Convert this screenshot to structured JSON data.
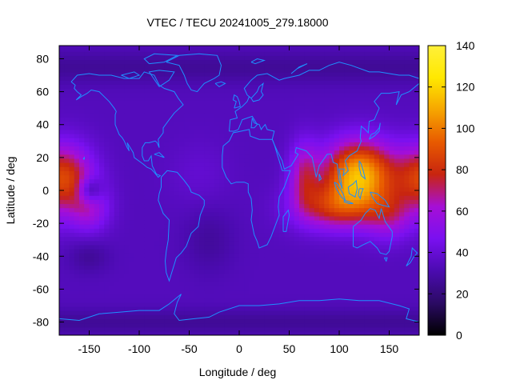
{
  "title": "VTEC / TECU 20241005_279.18000",
  "x_axis": {
    "label": "Longitude / deg",
    "range": [
      -180,
      180
    ],
    "ticks": [
      -150,
      -100,
      -50,
      0,
      50,
      100,
      150
    ],
    "tick_labels": [
      "-150",
      "-100",
      "-50",
      "0",
      "50",
      "100",
      "150"
    ]
  },
  "y_axis": {
    "label": "Latitude / deg",
    "range": [
      -88,
      88
    ],
    "ticks": [
      -80,
      -60,
      -40,
      -20,
      0,
      20,
      40,
      60,
      80
    ],
    "tick_labels": [
      "-80",
      "-60",
      "-40",
      "-20",
      "0",
      "20",
      "40",
      "60",
      "80"
    ]
  },
  "colorbar": {
    "range": [
      0,
      140
    ],
    "ticks": [
      0,
      20,
      40,
      60,
      80,
      100,
      120,
      140
    ],
    "tick_labels": [
      "0",
      "20",
      "40",
      "60",
      "80",
      "100",
      "120",
      "140"
    ],
    "palette": [
      "#000000",
      "#2b0a64",
      "#4b0bb0",
      "#7a10f0",
      "#a60fd6",
      "#c8250f",
      "#e85a00",
      "#f6a500",
      "#ffe800",
      "#fff03a"
    ]
  },
  "coastline_color": "#1e90ff",
  "tec_blobs": [
    {
      "lon": 120,
      "lat": 10,
      "value": 78,
      "slon": 35,
      "slat": 20
    },
    {
      "lon": 95,
      "lat": -10,
      "value": 40,
      "slon": 40,
      "slat": 14
    },
    {
      "lon": 150,
      "lat": -15,
      "value": 25,
      "slon": 25,
      "slat": 15
    },
    {
      "lon": 65,
      "lat": 10,
      "value": 30,
      "slon": 15,
      "slat": 20
    },
    {
      "lon": -175,
      "lat": 8,
      "value": 50,
      "slon": 28,
      "slat": 20
    },
    {
      "lon": -150,
      "lat": -10,
      "value": 25,
      "slon": 20,
      "slat": 15
    },
    {
      "lon": -150,
      "lat": 0,
      "value": -30,
      "slon": 12,
      "slat": 8
    },
    {
      "lon": -40,
      "lat": 10,
      "value": 5,
      "slon": 30,
      "slat": 20
    }
  ]
}
